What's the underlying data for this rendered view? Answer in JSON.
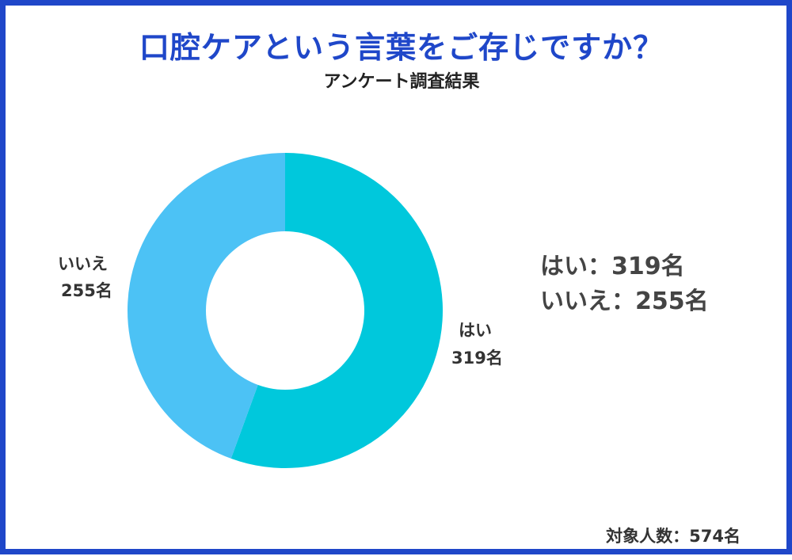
{
  "title": "口腔ケアという言葉をご存じですか？",
  "subtitle": "アンケート調査結果",
  "chart_data": {
    "type": "pie",
    "donut": true,
    "title": "口腔ケアという言葉をご存じですか？",
    "subtitle": "アンケート調査結果",
    "categories": [
      "はい",
      "いいえ"
    ],
    "values": [
      319,
      255
    ],
    "unit": "名",
    "colors": [
      "#00c8dc",
      "#4cc2f5"
    ],
    "slice_labels": [
      {
        "name": "はい",
        "value": "319名"
      },
      {
        "name": "いいえ",
        "value": "255名"
      }
    ]
  },
  "summary": [
    {
      "label": "はい",
      "sep": "：",
      "value": "319名"
    },
    {
      "label": "いいえ",
      "sep": "：",
      "value": "255名"
    }
  ],
  "total": "対象人数：574名"
}
